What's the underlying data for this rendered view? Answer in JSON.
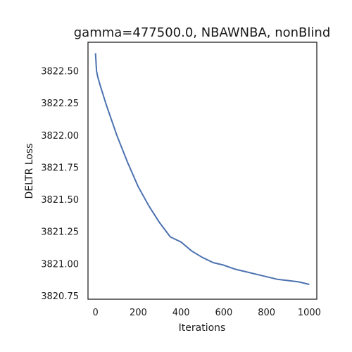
{
  "chart_data": {
    "type": "line",
    "title": "gamma=477500.0, NBAWNBA, nonBlind",
    "xlabel": "Iterations",
    "ylabel": "DELTR Loss",
    "xlim": [
      -35,
      1035
    ],
    "ylim": [
      3820.725,
      3822.725
    ],
    "xticks": [
      0,
      200,
      400,
      600,
      800,
      1000
    ],
    "yticks": [
      3820.75,
      3821.0,
      3821.25,
      3821.5,
      3821.75,
      3822.0,
      3822.25,
      3822.5
    ],
    "xtick_labels": [
      "0",
      "200",
      "400",
      "600",
      "800",
      "1000"
    ],
    "ytick_labels": [
      "3820.75",
      "3821.00",
      "3821.25",
      "3821.50",
      "3821.75",
      "3822.00",
      "3822.25",
      "3822.50"
    ],
    "grid": false,
    "series": [
      {
        "color": "#4c72b0",
        "x": [
          0,
          5,
          10,
          20,
          50,
          100,
          150,
          200,
          250,
          300,
          350,
          400,
          450,
          500,
          550,
          600,
          650,
          700,
          750,
          800,
          850,
          900,
          950,
          1000
        ],
        "values": [
          3822.64,
          3822.5,
          3822.46,
          3822.4,
          3822.24,
          3822.0,
          3821.79,
          3821.6,
          3821.45,
          3821.32,
          3821.21,
          3821.17,
          3821.1,
          3821.05,
          3821.01,
          3820.99,
          3820.96,
          3820.94,
          3820.92,
          3820.9,
          3820.88,
          3820.87,
          3820.86,
          3820.84
        ]
      }
    ]
  }
}
